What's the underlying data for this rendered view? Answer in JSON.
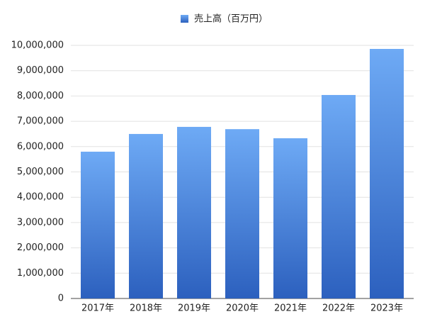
{
  "chart_data": {
    "type": "bar",
    "categories": [
      "2017年",
      "2018年",
      "2019年",
      "2020年",
      "2021年",
      "2022年",
      "2023年"
    ],
    "series": [
      {
        "name": "売上高（百万円）",
        "color": [
          "#6eaaf5",
          "#2c60be"
        ],
        "values": [
          5800000,
          6500000,
          6780000,
          6690000,
          6330000,
          8040000,
          9860000
        ]
      }
    ],
    "ylim": [
      0,
      10000000
    ],
    "yticks": [
      0,
      {
        "value": 1000000,
        "label": "1,000,000"
      },
      {
        "value": 2000000,
        "label": "2,000,000"
      },
      {
        "value": 3000000,
        "label": "3,000,000"
      },
      {
        "value": 4000000,
        "label": "4,000,000"
      },
      {
        "value": 5000000,
        "label": "5,000,000"
      },
      {
        "value": 6000000,
        "label": "6,000,000"
      },
      {
        "value": 7000000,
        "label": "7,000,000"
      },
      {
        "value": 8000000,
        "label": "8,000,000"
      },
      {
        "value": 9000000,
        "label": "9,000,000"
      },
      {
        "value": 10000000,
        "label": "10,000,000"
      }
    ],
    "grid": true,
    "legend": "top"
  }
}
